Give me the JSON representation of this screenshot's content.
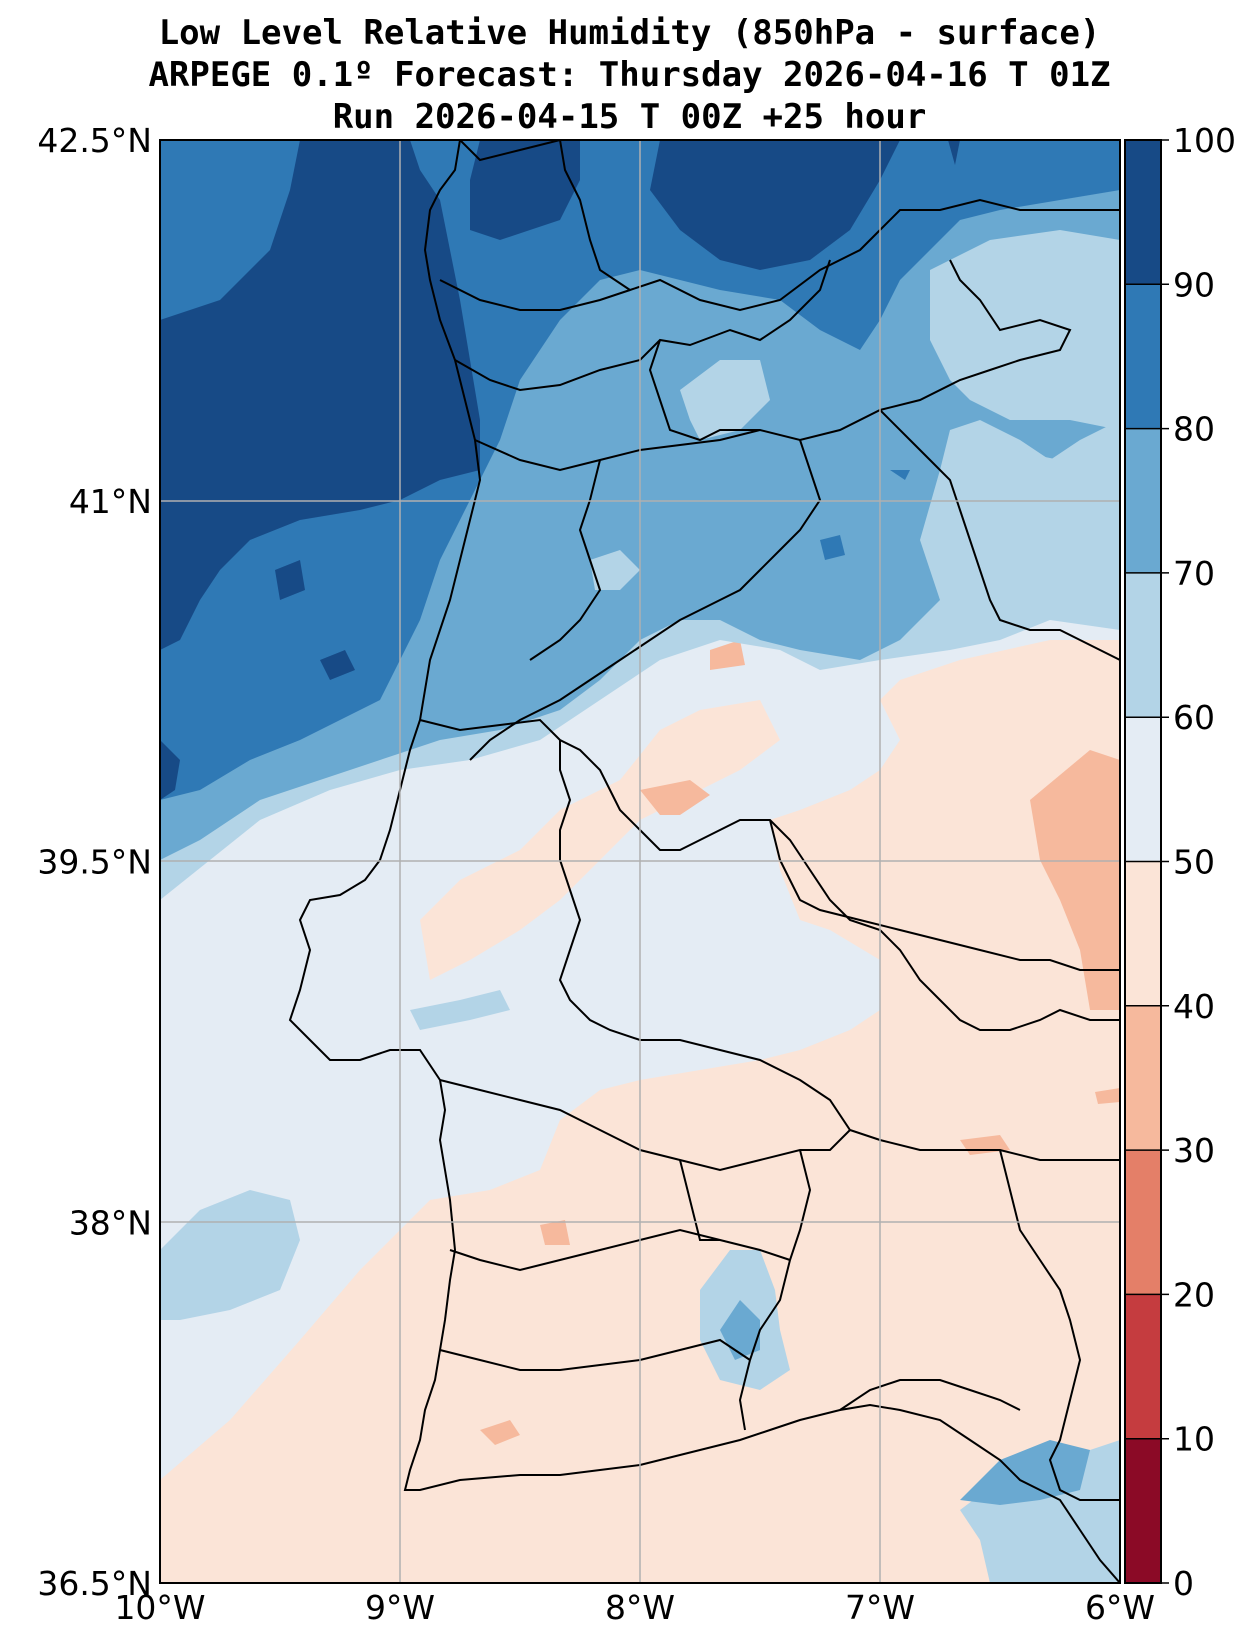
{
  "title": {
    "line1": "Low Level Relative Humidity (850hPa - surface)",
    "line2": "ARPEGE 0.1º Forecast: Thursday 2026-04-16 T 01Z",
    "line3": "Run 2026-04-15 T 00Z +25 hour"
  },
  "map": {
    "lon_range": [
      -10,
      -6
    ],
    "lat_range": [
      36.5,
      42.5
    ],
    "lon_ticks": [
      {
        "value": -10,
        "label": "10°W"
      },
      {
        "value": -9,
        "label": "9°W"
      },
      {
        "value": -8,
        "label": "8°W"
      },
      {
        "value": -7,
        "label": "7°W"
      },
      {
        "value": -6,
        "label": "6°W"
      }
    ],
    "lat_ticks": [
      {
        "value": 42.5,
        "label": "42.5°N"
      },
      {
        "value": 41,
        "label": "41°N"
      },
      {
        "value": 39.5,
        "label": "39.5°N"
      },
      {
        "value": 38,
        "label": "38°N"
      },
      {
        "value": 36.5,
        "label": "36.5°N"
      }
    ],
    "grid": true
  },
  "colorbar": {
    "levels": [
      0,
      10,
      20,
      30,
      40,
      50,
      60,
      70,
      80,
      90,
      100
    ],
    "labels": [
      "0",
      "10",
      "20",
      "30",
      "40",
      "50",
      "60",
      "70",
      "80",
      "90",
      "100"
    ],
    "colors": [
      "#8b0a26",
      "#c53c3f",
      "#e47f68",
      "#f6b99d",
      "#fbe4d7",
      "#e4ecf4",
      "#b3d4e7",
      "#6aa9d1",
      "#2f79b5",
      "#174a86"
    ]
  }
}
